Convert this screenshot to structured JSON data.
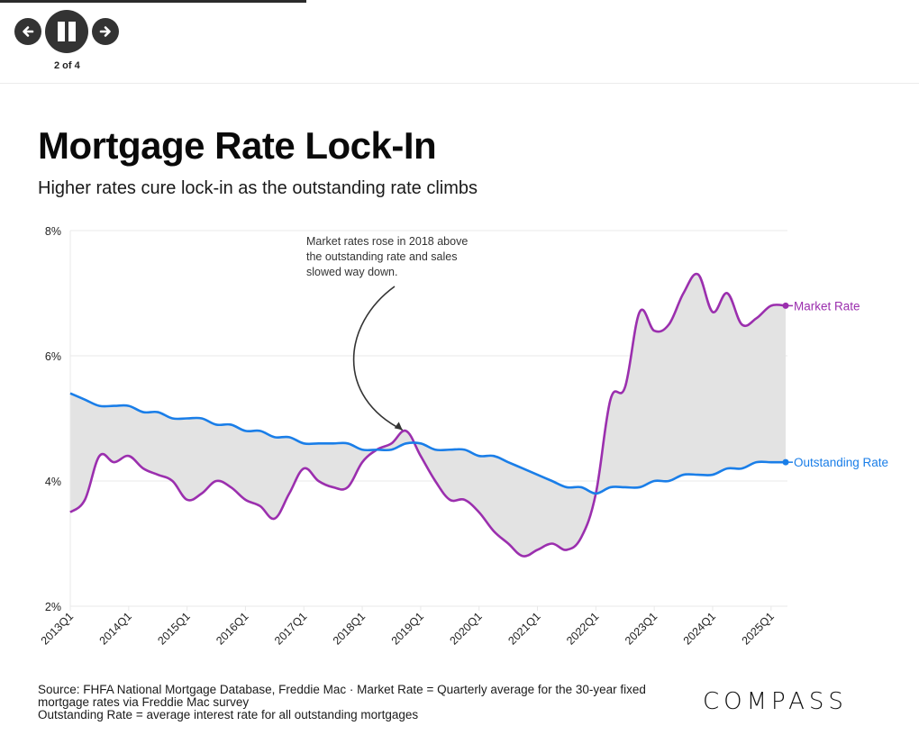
{
  "player": {
    "prev_label": "Previous",
    "pause_label": "Pause",
    "next_label": "Next",
    "counter": "2 of 4",
    "progress": 0.33
  },
  "page": {
    "title": "Mortgage Rate Lock-In",
    "subtitle": "Higher rates cure lock-in as the outstanding rate climbs",
    "footer_lines": [
      "Source: FHFA National Mortgage Database, Freddie Mac · Market Rate = Quarterly average for the 30-year fixed mortgage rates via Freddie Mac survey",
      "Outstanding Rate = average interest rate for all outstanding mortgages"
    ],
    "logo": "COMPASS"
  },
  "colors": {
    "market": "#9b2fae",
    "outstanding": "#1a7ee8",
    "fill": "#e3e3e3",
    "grid": "#e8e8e8",
    "annotation": "#333333"
  },
  "chart_data": {
    "type": "line",
    "title": "Mortgage Rate Lock-In",
    "subtitle": "Higher rates cure lock-in as the outstanding rate climbs",
    "xlabel": "",
    "ylabel": "",
    "ylim": [
      2,
      8
    ],
    "yticks": [
      2,
      4,
      6,
      8
    ],
    "ytick_labels": [
      "2%",
      "4%",
      "6%",
      "8%"
    ],
    "grid": true,
    "xtick_labels": [
      "2013Q1",
      "2014Q1",
      "2015Q1",
      "2016Q1",
      "2017Q1",
      "2018Q1",
      "2019Q1",
      "2020Q1",
      "2021Q1",
      "2022Q1",
      "2023Q1",
      "2024Q1",
      "2025Q1"
    ],
    "x": [
      "2013Q1",
      "2013Q2",
      "2013Q3",
      "2013Q4",
      "2014Q1",
      "2014Q2",
      "2014Q3",
      "2014Q4",
      "2015Q1",
      "2015Q2",
      "2015Q3",
      "2015Q4",
      "2016Q1",
      "2016Q2",
      "2016Q3",
      "2016Q4",
      "2017Q1",
      "2017Q2",
      "2017Q3",
      "2017Q4",
      "2018Q1",
      "2018Q2",
      "2018Q3",
      "2018Q4",
      "2019Q1",
      "2019Q2",
      "2019Q3",
      "2019Q4",
      "2020Q1",
      "2020Q2",
      "2020Q3",
      "2020Q4",
      "2021Q1",
      "2021Q2",
      "2021Q3",
      "2021Q4",
      "2022Q1",
      "2022Q2",
      "2022Q3",
      "2022Q4",
      "2023Q1",
      "2023Q2",
      "2023Q3",
      "2023Q4",
      "2024Q1",
      "2024Q2",
      "2024Q3",
      "2024Q4",
      "2025Q1",
      "2025Q2"
    ],
    "series": [
      {
        "name": "Market Rate",
        "values": [
          3.5,
          3.7,
          4.4,
          4.3,
          4.4,
          4.2,
          4.1,
          4.0,
          3.7,
          3.8,
          4.0,
          3.9,
          3.7,
          3.6,
          3.4,
          3.8,
          4.2,
          4.0,
          3.9,
          3.9,
          4.3,
          4.5,
          4.6,
          4.8,
          4.4,
          4.0,
          3.7,
          3.7,
          3.5,
          3.2,
          3.0,
          2.8,
          2.9,
          3.0,
          2.9,
          3.1,
          3.8,
          5.3,
          5.5,
          6.7,
          6.4,
          6.5,
          7.0,
          7.3,
          6.7,
          7.0,
          6.5,
          6.6,
          6.8,
          6.8
        ]
      },
      {
        "name": "Outstanding Rate",
        "values": [
          5.4,
          5.3,
          5.2,
          5.2,
          5.2,
          5.1,
          5.1,
          5.0,
          5.0,
          5.0,
          4.9,
          4.9,
          4.8,
          4.8,
          4.7,
          4.7,
          4.6,
          4.6,
          4.6,
          4.6,
          4.5,
          4.5,
          4.5,
          4.6,
          4.6,
          4.5,
          4.5,
          4.5,
          4.4,
          4.4,
          4.3,
          4.2,
          4.1,
          4.0,
          3.9,
          3.9,
          3.8,
          3.9,
          3.9,
          3.9,
          4.0,
          4.0,
          4.1,
          4.1,
          4.1,
          4.2,
          4.2,
          4.3,
          4.3,
          4.3
        ]
      }
    ],
    "legend": "right-end labels",
    "annotations": [
      {
        "text_lines": [
          "Market rates rose in 2018 above",
          "the outstanding rate and sales",
          "slowed way down."
        ],
        "points_to": "2018Q4"
      }
    ]
  }
}
